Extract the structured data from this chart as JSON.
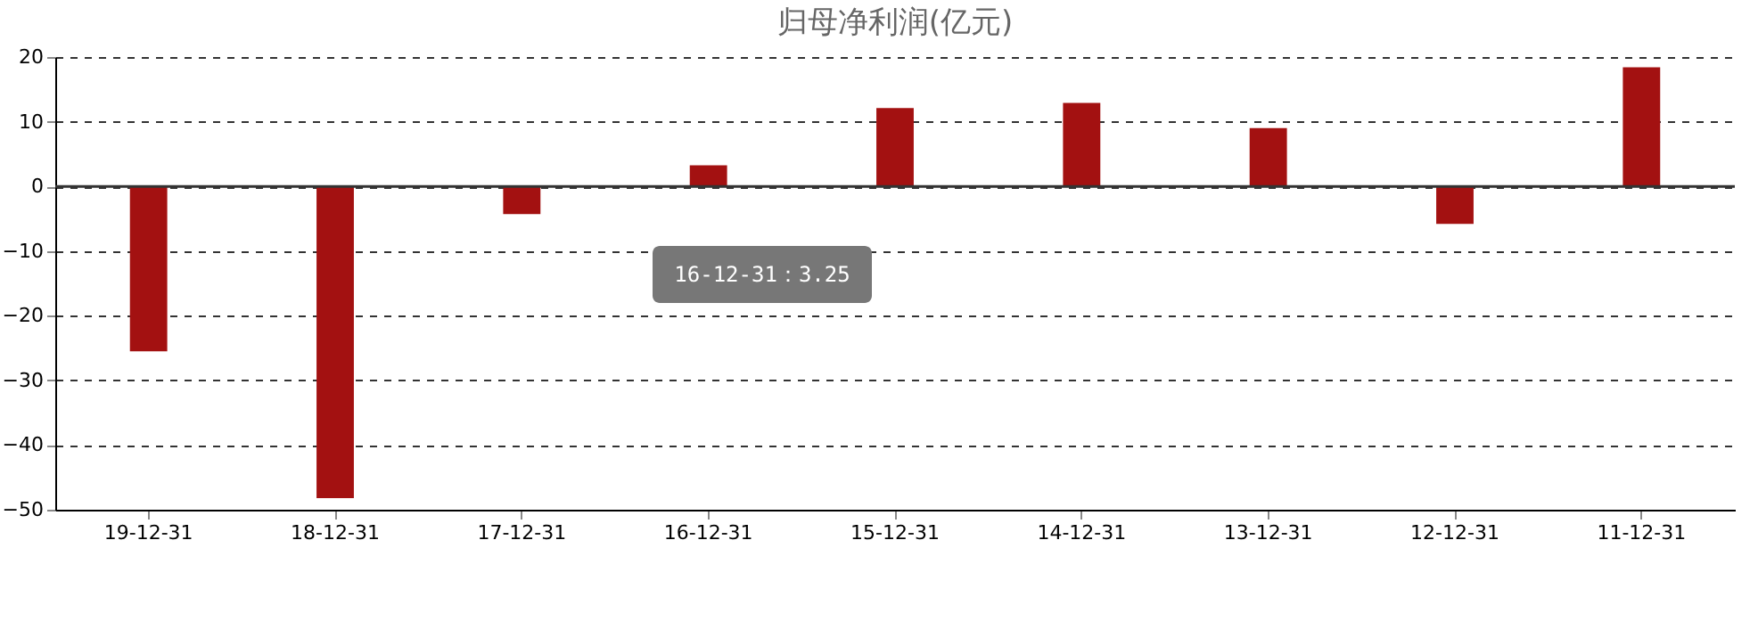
{
  "chart_data": {
    "type": "bar",
    "title": "归母净利润(亿元)",
    "categories": [
      "19-12-31",
      "18-12-31",
      "17-12-31",
      "16-12-31",
      "15-12-31",
      "14-12-31",
      "13-12-31",
      "12-12-31",
      "11-12-31"
    ],
    "values": [
      -25.5,
      -48.2,
      -4.3,
      3.25,
      12.1,
      12.9,
      9.0,
      -5.8,
      18.4
    ],
    "color": "#a31111",
    "ylim": [
      -50,
      20
    ],
    "yticks": [
      -50,
      -40,
      -30,
      -20,
      -10,
      0,
      10,
      20
    ],
    "grid": "y",
    "annotations": [
      "16-12-31：3.25"
    ]
  }
}
